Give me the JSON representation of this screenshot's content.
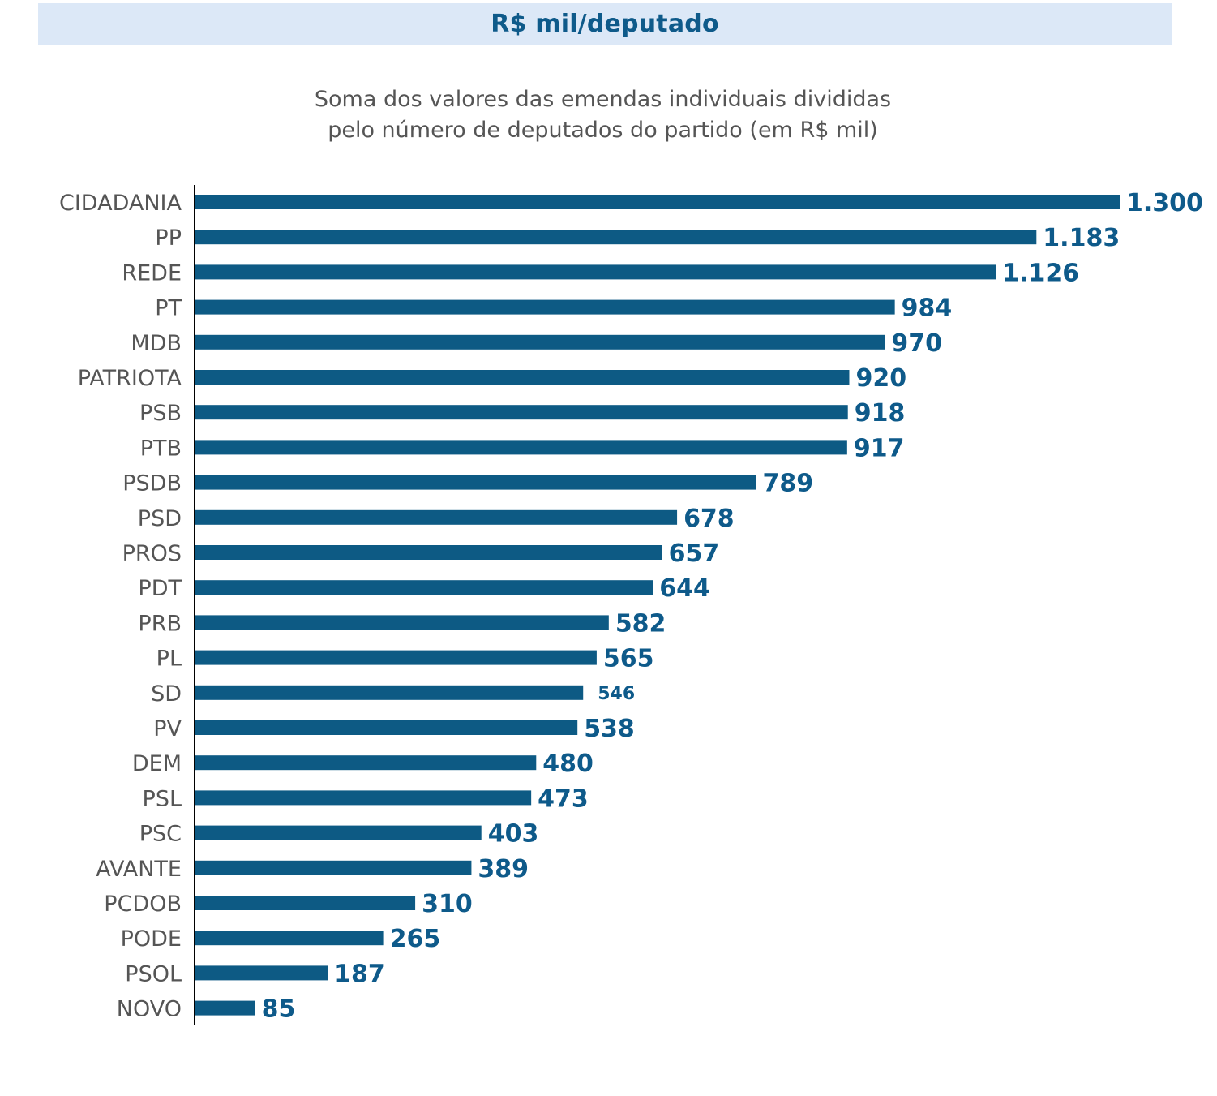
{
  "header": {
    "title": "R$ mil/deputado"
  },
  "subtitle": {
    "line1": "Soma dos valores das emendas individuais divididas",
    "line2": "pelo número de deputados do partido (em R$ mil)"
  },
  "colors": {
    "bar": "#0d5a84",
    "value_text": "#0e5a8a",
    "category_text": "#555555",
    "header_bg": "#dce8f7"
  },
  "chart_data": {
    "type": "bar",
    "orientation": "horizontal",
    "title": "R$ mil/deputado",
    "subtitle": "Soma dos valores das emendas individuais divididas pelo número de deputados do partido (em R$ mil)",
    "xlabel": "",
    "ylabel": "",
    "xlim": [
      0,
      1300
    ],
    "grid": false,
    "categories": [
      "CIDADANIA",
      "PP",
      "REDE",
      "PT",
      "MDB",
      "PATRIOTA",
      "PSB",
      "PTB",
      "PSDB",
      "PSD",
      "PROS",
      "PDT",
      "PRB",
      "PL",
      "SD",
      "PV",
      "DEM",
      "PSL",
      "PSC",
      "AVANTE",
      "PCDOB",
      "PODE",
      "PSOL",
      "NOVO"
    ],
    "values": [
      1300,
      1183,
      1126,
      984,
      970,
      920,
      918,
      917,
      789,
      678,
      657,
      644,
      582,
      565,
      546,
      538,
      480,
      473,
      403,
      389,
      310,
      265,
      187,
      85
    ],
    "value_labels": [
      "1.300",
      "1.183",
      "1.126",
      "984",
      "970",
      "920",
      "918",
      "917",
      "789",
      "678",
      "657",
      "644",
      "582",
      "565",
      "546",
      "538",
      "480",
      "473",
      "403",
      "389",
      "310",
      "265",
      "187",
      "85"
    ]
  }
}
